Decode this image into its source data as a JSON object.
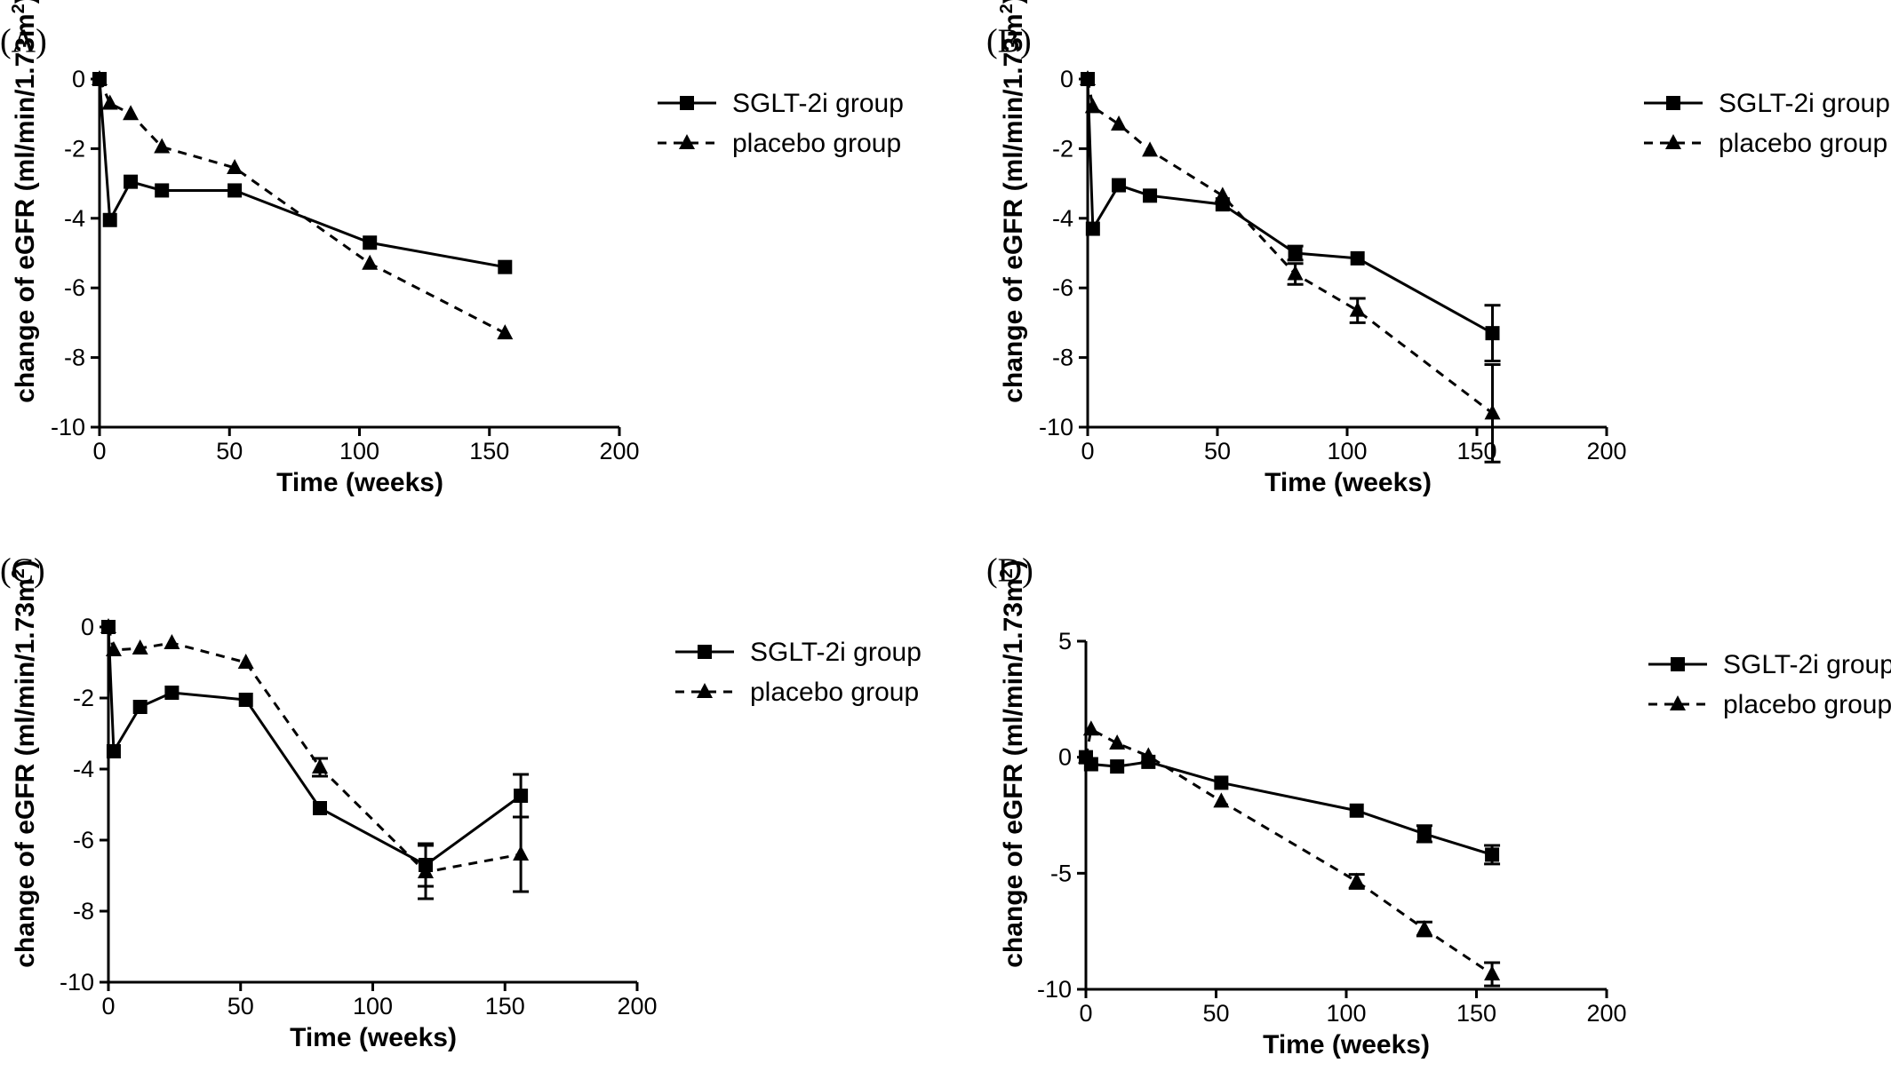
{
  "chart_data": [
    {
      "type": "line",
      "panel_label": "(A)",
      "xlabel": "Time (weeks)",
      "ylabel_main": "change of eGFR (ml/min/1.73m",
      "ylabel_sup": "2",
      "ylabel_close": ")",
      "xlim": [
        0,
        200
      ],
      "ylim": [
        -10,
        0
      ],
      "xticks": [
        0,
        50,
        100,
        150,
        200
      ],
      "yticks": [
        0,
        -2,
        -4,
        -6,
        -8,
        -10
      ],
      "grid": false,
      "legend_position": "top-right",
      "series": [
        {
          "name": "SGLT-2i group",
          "marker": "square",
          "line": "solid",
          "color": "#000000",
          "x": [
            0,
            4,
            12,
            24,
            52,
            104,
            156
          ],
          "y": [
            0,
            -4.05,
            -2.95,
            -3.2,
            -3.2,
            -4.7,
            -5.4
          ],
          "err": [
            0,
            0,
            0,
            0,
            0,
            0,
            0
          ]
        },
        {
          "name": "placebo group",
          "marker": "triangle",
          "line": "dashed",
          "color": "#000000",
          "x": [
            0,
            4,
            12,
            24,
            52,
            104,
            156
          ],
          "y": [
            0,
            -0.7,
            -1.0,
            -1.95,
            -2.55,
            -5.3,
            -7.3
          ],
          "err": [
            0,
            0,
            0,
            0,
            0,
            0,
            0
          ]
        }
      ]
    },
    {
      "type": "line",
      "panel_label": "(B)",
      "xlabel": "Time (weeks)",
      "ylabel_main": "change of eGFR (ml/min/1.73m",
      "ylabel_sup": "2",
      "ylabel_close": ")",
      "xlim": [
        0,
        200
      ],
      "ylim": [
        -10,
        0
      ],
      "xticks": [
        0,
        50,
        100,
        150,
        200
      ],
      "yticks": [
        0,
        -2,
        -4,
        -6,
        -8,
        -10
      ],
      "grid": false,
      "legend_position": "top-right",
      "series": [
        {
          "name": "SGLT-2i group",
          "marker": "square",
          "line": "solid",
          "color": "#000000",
          "x": [
            0,
            2,
            12,
            24,
            52,
            80,
            104,
            156
          ],
          "y": [
            0,
            -4.3,
            -3.05,
            -3.35,
            -3.6,
            -5.0,
            -5.15,
            -7.3
          ],
          "err": [
            0,
            0,
            0,
            0,
            0,
            0.2,
            0,
            0.8
          ]
        },
        {
          "name": "placebo group",
          "marker": "triangle",
          "line": "dashed",
          "color": "#000000",
          "x": [
            0,
            2,
            12,
            24,
            52,
            80,
            104,
            156
          ],
          "y": [
            0,
            -0.8,
            -1.3,
            -2.05,
            -3.35,
            -5.6,
            -6.65,
            -9.6
          ],
          "err": [
            0,
            0,
            0,
            0,
            0,
            0.3,
            0.35,
            1.4
          ]
        }
      ]
    },
    {
      "type": "line",
      "panel_label": "(C)",
      "xlabel": "Time (weeks)",
      "ylabel_main": "change of eGFR (ml/min/1.73m",
      "ylabel_sup": "2",
      "ylabel_close": ")",
      "xlim": [
        0,
        200
      ],
      "ylim": [
        -10,
        0
      ],
      "xticks": [
        0,
        50,
        100,
        150,
        200
      ],
      "yticks": [
        0,
        -2,
        -4,
        -6,
        -8,
        -10
      ],
      "grid": false,
      "legend_position": "top-right",
      "series": [
        {
          "name": "SGLT-2i group",
          "marker": "square",
          "line": "solid",
          "color": "#000000",
          "x": [
            0,
            2,
            12,
            24,
            52,
            80,
            120,
            156
          ],
          "y": [
            0,
            -3.5,
            -2.25,
            -1.85,
            -2.05,
            -5.1,
            -6.7,
            -4.75
          ],
          "err": [
            0,
            0,
            0,
            0,
            0,
            0,
            0.6,
            0.6
          ]
        },
        {
          "name": "placebo group",
          "marker": "triangle",
          "line": "dashed",
          "color": "#000000",
          "x": [
            0,
            2,
            12,
            24,
            52,
            80,
            120,
            156
          ],
          "y": [
            0,
            -0.65,
            -0.6,
            -0.45,
            -1.0,
            -3.95,
            -6.9,
            -6.4
          ],
          "err": [
            0,
            0,
            0,
            0,
            0,
            0.25,
            0.75,
            1.05
          ]
        }
      ]
    },
    {
      "type": "line",
      "panel_label": "(D)",
      "xlabel": "Time (weeks)",
      "ylabel_main": "change of eGFR (ml/min/1.73m",
      "ylabel_sup": "2",
      "ylabel_close": ")",
      "xlim": [
        0,
        200
      ],
      "ylim": [
        -10,
        5
      ],
      "xticks": [
        0,
        50,
        100,
        150,
        200
      ],
      "yticks": [
        5,
        0,
        -5,
        -10
      ],
      "grid": false,
      "legend_position": "top-right",
      "series": [
        {
          "name": "SGLT-2i group",
          "marker": "square",
          "line": "solid",
          "color": "#000000",
          "x": [
            0,
            2,
            12,
            24,
            52,
            104,
            130,
            156
          ],
          "y": [
            0,
            -0.3,
            -0.4,
            -0.2,
            -1.1,
            -2.3,
            -3.3,
            -4.2
          ],
          "err": [
            0,
            0,
            0,
            0,
            0,
            0,
            0.35,
            0.4
          ]
        },
        {
          "name": "placebo group",
          "marker": "triangle",
          "line": "dashed",
          "color": "#000000",
          "x": [
            0,
            2,
            12,
            24,
            52,
            104,
            130,
            156
          ],
          "y": [
            0,
            1.2,
            0.6,
            0.05,
            -1.9,
            -5.35,
            -7.4,
            -9.35
          ],
          "err": [
            0,
            0,
            0,
            0,
            0,
            0.3,
            0.3,
            0.5
          ]
        }
      ]
    }
  ]
}
